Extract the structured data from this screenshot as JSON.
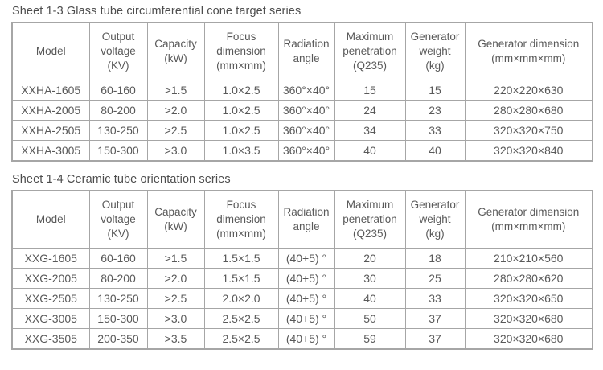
{
  "page": {
    "background": "#ffffff",
    "text_color": "#595959",
    "title_color": "#4d4d4d",
    "border_color": "#a6a6a6"
  },
  "tables": [
    {
      "title": "Sheet 1-3 Glass tube circumferential cone target series",
      "headers": [
        "Model",
        "Output\nvoltage\n(KV)",
        "Capacity\n(kW)",
        "Focus\ndimension\n(mm×mm)",
        "Radiation\nangle",
        "Maximum\npenetration\n(Q235)",
        "Generator\nweight\n(kg)",
        "Generator dimension\n(mm×mm×mm)"
      ],
      "column_ids": [
        "model",
        "output-voltage",
        "capacity",
        "focus-dimension",
        "radiation-angle",
        "maximum-penetration",
        "generator-weight",
        "generator-dimension"
      ],
      "rows": [
        [
          "XXHA-1605",
          "60-160",
          ">1.5",
          "1.0×2.5",
          "360°×40°",
          "15",
          "15",
          "220×220×630"
        ],
        [
          "XXHA-2005",
          "80-200",
          ">2.0",
          "1.0×2.5",
          "360°×40°",
          "24",
          "23",
          "280×280×680"
        ],
        [
          "XXHA-2505",
          "130-250",
          ">2.5",
          "1.0×2.5",
          "360°×40°",
          "34",
          "33",
          "320×320×750"
        ],
        [
          "XXHA-3005",
          "150-300",
          ">3.0",
          "1.0×3.5",
          "360°×40°",
          "40",
          "40",
          "320×320×840"
        ]
      ]
    },
    {
      "title": "Sheet 1-4 Ceramic tube orientation series",
      "headers": [
        "Model",
        "Output\nvoltage\n(KV)",
        "Capacity\n(kW)",
        "Focus\ndimension\n(mm×mm)",
        "Radiation\nangle",
        "Maximum\npenetration\n(Q235)",
        "Generator\nweight\n(kg)",
        "Generator dimension\n(mm×mm×mm)"
      ],
      "column_ids": [
        "model",
        "output-voltage",
        "capacity",
        "focus-dimension",
        "radiation-angle",
        "maximum-penetration",
        "generator-weight",
        "generator-dimension"
      ],
      "rows": [
        [
          "XXG-1605",
          "60-160",
          ">1.5",
          "1.5×1.5",
          "(40+5) °",
          "20",
          "18",
          "210×210×560"
        ],
        [
          "XXG-2005",
          "80-200",
          ">2.0",
          "1.5×1.5",
          "(40+5) °",
          "30",
          "25",
          "280×280×620"
        ],
        [
          "XXG-2505",
          "130-250",
          ">2.5",
          "2.0×2.0",
          "(40+5) °",
          "40",
          "33",
          "320×320×650"
        ],
        [
          "XXG-3005",
          "150-300",
          ">3.0",
          "2.5×2.5",
          "(40+5) °",
          "50",
          "37",
          "320×320×680"
        ],
        [
          "XXG-3505",
          "200-350",
          ">3.5",
          "2.5×2.5",
          "(40+5) °",
          "59",
          "37",
          "320×320×680"
        ]
      ]
    }
  ]
}
